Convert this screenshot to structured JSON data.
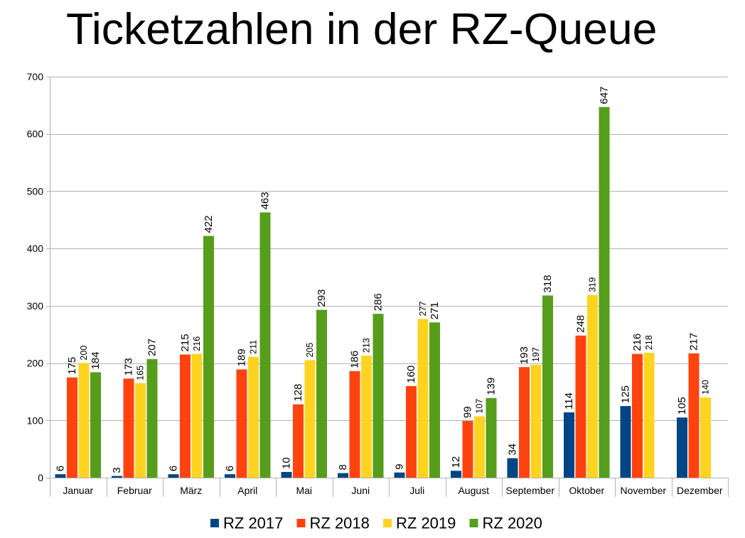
{
  "chart_data": {
    "type": "bar",
    "title": "Ticketzahlen in der RZ-Queue",
    "xlabel": "",
    "ylabel": "",
    "categories": [
      "Januar",
      "Februar",
      "März",
      "April",
      "Mai",
      "Juni",
      "Juli",
      "August",
      "September",
      "Oktober",
      "November",
      "Dezember"
    ],
    "ylim": [
      0,
      700
    ],
    "yticks": [
      0,
      100,
      200,
      300,
      400,
      500,
      600,
      700
    ],
    "grid": true,
    "legend": "bottom",
    "data_labels": true,
    "series": [
      {
        "name": "RZ 2017",
        "color": "#004586",
        "values": [
          6,
          3,
          6,
          6,
          10,
          8,
          9,
          12,
          34,
          114,
          125,
          105
        ]
      },
      {
        "name": "RZ 2018",
        "color": "#ff420e",
        "values": [
          175,
          173,
          215,
          189,
          128,
          186,
          160,
          99,
          193,
          248,
          216,
          217
        ]
      },
      {
        "name": "RZ 2019",
        "color": "#ffd320",
        "values": [
          200,
          165,
          216,
          211,
          205,
          213,
          277,
          107,
          197,
          319,
          218,
          140
        ]
      },
      {
        "name": "RZ 2020",
        "color": "#579d1c",
        "values": [
          184,
          207,
          422,
          463,
          293,
          286,
          271,
          139,
          318,
          647,
          null,
          null
        ]
      }
    ]
  }
}
